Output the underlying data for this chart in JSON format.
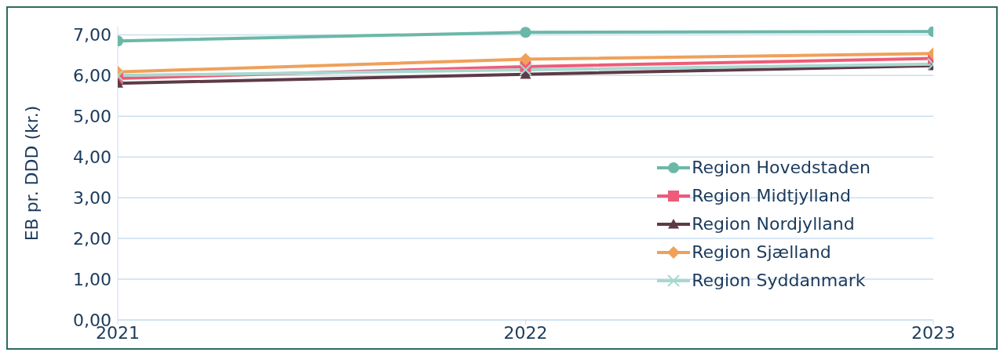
{
  "chart_data": {
    "type": "line",
    "ylabel": "EB pr. DDD (kr.)",
    "x": [
      2021,
      2022,
      2023
    ],
    "xlim": [
      2021,
      2023
    ],
    "xticks": [
      2021,
      2022,
      2023
    ],
    "ylim": [
      0,
      7.2
    ],
    "yticks": [
      {
        "value": 0,
        "label": "0,00"
      },
      {
        "value": 1,
        "label": "1,00"
      },
      {
        "value": 2,
        "label": "2,00"
      },
      {
        "value": 3,
        "label": "3,00"
      },
      {
        "value": 4,
        "label": "4,00"
      },
      {
        "value": 5,
        "label": "5,00"
      },
      {
        "value": 6,
        "label": "6,00"
      },
      {
        "value": 7,
        "label": "7,00"
      }
    ],
    "grid": "y",
    "legend": "right",
    "series": [
      {
        "name": "Region Hovedstaden",
        "color": "#6cb8a8",
        "marker": "circle",
        "values": [
          6.85,
          7.06,
          7.08
        ]
      },
      {
        "name": "Region Midtjylland",
        "color": "#ef5b78",
        "marker": "square",
        "values": [
          5.93,
          6.22,
          6.42
        ]
      },
      {
        "name": "Region Nordjylland",
        "color": "#5e3a46",
        "marker": "triangle",
        "values": [
          5.81,
          6.03,
          6.24
        ]
      },
      {
        "name": "Region Sjælland",
        "color": "#f0a05a",
        "marker": "diamond",
        "values": [
          6.09,
          6.4,
          6.54
        ]
      },
      {
        "name": "Region Syddanmark",
        "color": "#a8d8d0",
        "marker": "cross",
        "values": [
          6.0,
          6.14,
          6.28
        ]
      }
    ]
  }
}
